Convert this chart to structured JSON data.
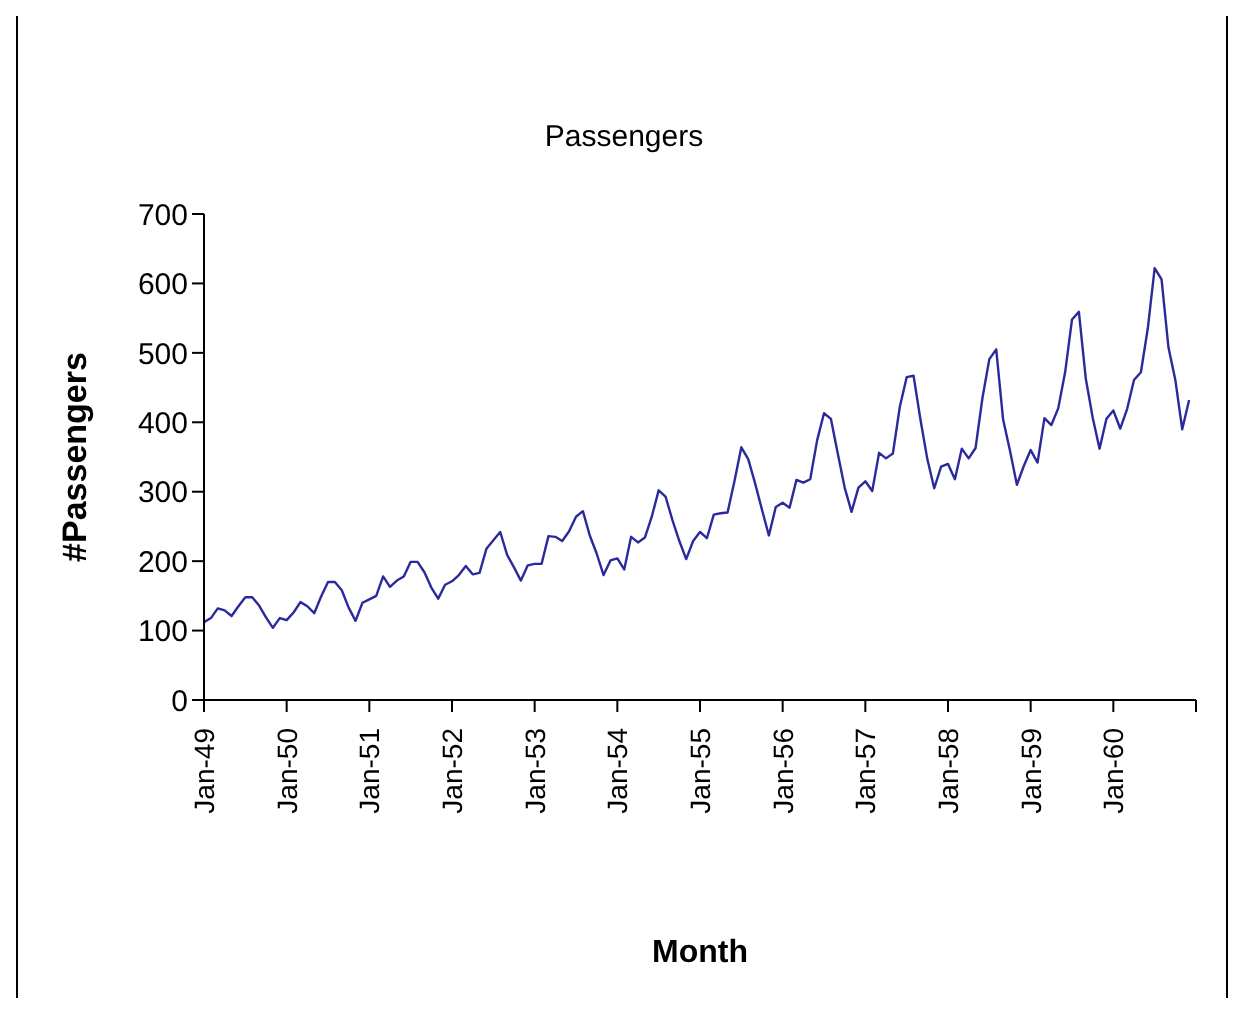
{
  "chart_data": {
    "type": "line",
    "title": "Passengers",
    "xlabel": "Month",
    "ylabel": "#Passengers",
    "x": [
      "1949-01",
      "1949-02",
      "1949-03",
      "1949-04",
      "1949-05",
      "1949-06",
      "1949-07",
      "1949-08",
      "1949-09",
      "1949-10",
      "1949-11",
      "1949-12",
      "1950-01",
      "1950-02",
      "1950-03",
      "1950-04",
      "1950-05",
      "1950-06",
      "1950-07",
      "1950-08",
      "1950-09",
      "1950-10",
      "1950-11",
      "1950-12",
      "1951-01",
      "1951-02",
      "1951-03",
      "1951-04",
      "1951-05",
      "1951-06",
      "1951-07",
      "1951-08",
      "1951-09",
      "1951-10",
      "1951-11",
      "1951-12",
      "1952-01",
      "1952-02",
      "1952-03",
      "1952-04",
      "1952-05",
      "1952-06",
      "1952-07",
      "1952-08",
      "1952-09",
      "1952-10",
      "1952-11",
      "1952-12",
      "1953-01",
      "1953-02",
      "1953-03",
      "1953-04",
      "1953-05",
      "1953-06",
      "1953-07",
      "1953-08",
      "1953-09",
      "1953-10",
      "1953-11",
      "1953-12",
      "1954-01",
      "1954-02",
      "1954-03",
      "1954-04",
      "1954-05",
      "1954-06",
      "1954-07",
      "1954-08",
      "1954-09",
      "1954-10",
      "1954-11",
      "1954-12",
      "1955-01",
      "1955-02",
      "1955-03",
      "1955-04",
      "1955-05",
      "1955-06",
      "1955-07",
      "1955-08",
      "1955-09",
      "1955-10",
      "1955-11",
      "1955-12",
      "1956-01",
      "1956-02",
      "1956-03",
      "1956-04",
      "1956-05",
      "1956-06",
      "1956-07",
      "1956-08",
      "1956-09",
      "1956-10",
      "1956-11",
      "1956-12",
      "1957-01",
      "1957-02",
      "1957-03",
      "1957-04",
      "1957-05",
      "1957-06",
      "1957-07",
      "1957-08",
      "1957-09",
      "1957-10",
      "1957-11",
      "1957-12",
      "1958-01",
      "1958-02",
      "1958-03",
      "1958-04",
      "1958-05",
      "1958-06",
      "1958-07",
      "1958-08",
      "1958-09",
      "1958-10",
      "1958-11",
      "1958-12",
      "1959-01",
      "1959-02",
      "1959-03",
      "1959-04",
      "1959-05",
      "1959-06",
      "1959-07",
      "1959-08",
      "1959-09",
      "1959-10",
      "1959-11",
      "1959-12",
      "1960-01",
      "1960-02",
      "1960-03",
      "1960-04",
      "1960-05",
      "1960-06",
      "1960-07",
      "1960-08",
      "1960-09",
      "1960-10",
      "1960-11",
      "1960-12"
    ],
    "series": [
      {
        "color": "#2a2a9c",
        "values": [
          112,
          118,
          132,
          129,
          121,
          135,
          148,
          148,
          136,
          119,
          104,
          118,
          115,
          126,
          141,
          135,
          125,
          149,
          170,
          170,
          158,
          133,
          114,
          140,
          145,
          150,
          178,
          163,
          172,
          178,
          199,
          199,
          184,
          162,
          146,
          166,
          171,
          180,
          193,
          181,
          183,
          218,
          230,
          242,
          209,
          191,
          172,
          194,
          196,
          196,
          236,
          235,
          229,
          243,
          264,
          272,
          237,
          211,
          180,
          201,
          204,
          188,
          235,
          227,
          234,
          264,
          302,
          293,
          259,
          229,
          203,
          229,
          242,
          233,
          267,
          269,
          270,
          315,
          364,
          347,
          312,
          274,
          237,
          278,
          284,
          277,
          317,
          313,
          318,
          374,
          413,
          405,
          355,
          306,
          271,
          306,
          315,
          301,
          356,
          348,
          355,
          422,
          465,
          467,
          404,
          347,
          305,
          336,
          340,
          318,
          362,
          348,
          363,
          435,
          491,
          505,
          404,
          359,
          310,
          337,
          360,
          342,
          406,
          396,
          420,
          472,
          548,
          559,
          463,
          407,
          362,
          405,
          417,
          391,
          419,
          461,
          472,
          535,
          622,
          606,
          508,
          461,
          390,
          432
        ]
      }
    ],
    "xlim": [
      "1949-01",
      "1961-01"
    ],
    "xticks": [
      {
        "value": "1949-01",
        "label": "Jan-49"
      },
      {
        "value": "1950-01",
        "label": "Jan-50"
      },
      {
        "value": "1951-01",
        "label": "Jan-51"
      },
      {
        "value": "1952-01",
        "label": "Jan-52"
      },
      {
        "value": "1953-01",
        "label": "Jan-53"
      },
      {
        "value": "1954-01",
        "label": "Jan-54"
      },
      {
        "value": "1955-01",
        "label": "Jan-55"
      },
      {
        "value": "1956-01",
        "label": "Jan-56"
      },
      {
        "value": "1957-01",
        "label": "Jan-57"
      },
      {
        "value": "1958-01",
        "label": "Jan-58"
      },
      {
        "value": "1959-01",
        "label": "Jan-59"
      },
      {
        "value": "1960-01",
        "label": "Jan-60"
      },
      {
        "value": "1961-01",
        "label": null
      }
    ],
    "ylim": [
      0,
      700
    ],
    "yticks": [
      0,
      100,
      200,
      300,
      400,
      500,
      600,
      700
    ],
    "grid": false,
    "legend": false,
    "marker": "none",
    "line_style": "solid"
  }
}
